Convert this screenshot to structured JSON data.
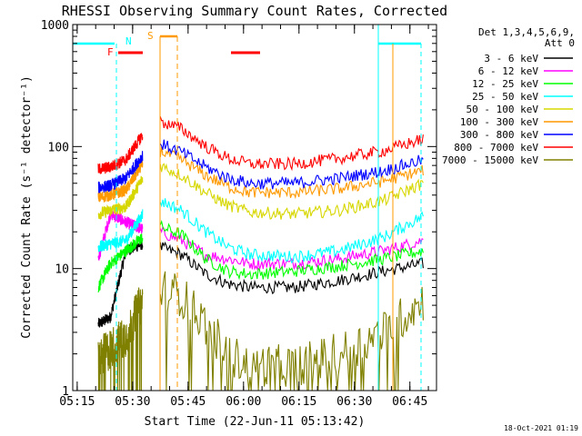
{
  "chart_data": {
    "type": "line",
    "title": "RHESSI Observing Summary Count Rates, Corrected",
    "xlabel": "Start Time (22-Jun-11 05:13:42)",
    "ylabel": "Corrected Count Rate (s⁻¹ detector⁻¹)",
    "yscale": "log",
    "ylim": [
      1,
      1000
    ],
    "xlim_min": [
      5.23,
      6.87
    ],
    "x_ticks": [
      {
        "label": "05:15",
        "t": 5.25
      },
      {
        "label": "05:30",
        "t": 5.5
      },
      {
        "label": "05:45",
        "t": 5.75
      },
      {
        "label": "06:00",
        "t": 6.0
      },
      {
        "label": "06:15",
        "t": 6.25
      },
      {
        "label": "06:30",
        "t": 6.5
      },
      {
        "label": "06:45",
        "t": 6.75
      }
    ],
    "y_ticks": [
      {
        "label": "1",
        "v": 1
      },
      {
        "label": "10",
        "v": 10
      },
      {
        "label": "100",
        "v": 100
      },
      {
        "label": "1000",
        "v": 1000
      }
    ],
    "legend": {
      "header": [
        "Det 1,3,4,5,6,9,",
        "Att 0"
      ],
      "position": "right"
    },
    "series": [
      {
        "name": "3 - 6 keV",
        "color": "#000000",
        "values": [
          3.5,
          4,
          14,
          16,
          15,
          13,
          9,
          7.5,
          7,
          7,
          8,
          9.5,
          11
        ]
      },
      {
        "name": "6 - 12 keV",
        "color": "#ff00ff",
        "values": [
          12,
          28,
          24,
          21,
          20,
          17,
          13,
          12,
          11,
          11,
          12,
          14,
          17
        ]
      },
      {
        "name": "12 - 25 keV",
        "color": "#00ff00",
        "values": [
          7,
          11,
          14,
          18,
          22,
          19,
          12,
          9.5,
          9,
          9.5,
          10.5,
          12,
          14
        ]
      },
      {
        "name": "25 - 50 keV",
        "color": "#00ffff",
        "values": [
          15,
          16,
          17,
          28,
          36,
          30,
          20,
          15,
          13,
          12.5,
          14,
          18,
          27
        ]
      },
      {
        "name": "50 - 100 keV",
        "color": "#d7d700",
        "values": [
          28,
          30,
          32,
          55,
          70,
          58,
          42,
          33,
          29,
          28,
          30,
          36,
          50
        ]
      },
      {
        "name": "100 - 300 keV",
        "color": "#ff9900",
        "values": [
          38,
          40,
          44,
          72,
          92,
          78,
          58,
          47,
          42,
          42,
          45,
          52,
          64
        ]
      },
      {
        "name": "300 - 800 keV",
        "color": "#0000ff",
        "values": [
          46,
          48,
          55,
          85,
          105,
          90,
          68,
          55,
          50,
          50,
          55,
          63,
          78
        ]
      },
      {
        "name": "800 - 7000 keV",
        "color": "#ff0000",
        "values": [
          65,
          68,
          78,
          125,
          160,
          140,
          100,
          80,
          72,
          72,
          80,
          92,
          115
        ]
      },
      {
        "name": "7000 - 15000 keV",
        "color": "#808000",
        "values": [
          1.8,
          2.2,
          2.8,
          5.5,
          7,
          6,
          3.5,
          2,
          1.6,
          1.6,
          2,
          3,
          5.5
        ]
      }
    ],
    "annotations": [
      {
        "label": "N",
        "kind": "night",
        "color": "#00ffff"
      },
      {
        "label": "S",
        "kind": "saa",
        "color": "#ff9900"
      },
      {
        "label": "F",
        "kind": "flare",
        "color": "#ff0000"
      }
    ],
    "footer_stamp": "18-Oct-2021 01:19"
  }
}
